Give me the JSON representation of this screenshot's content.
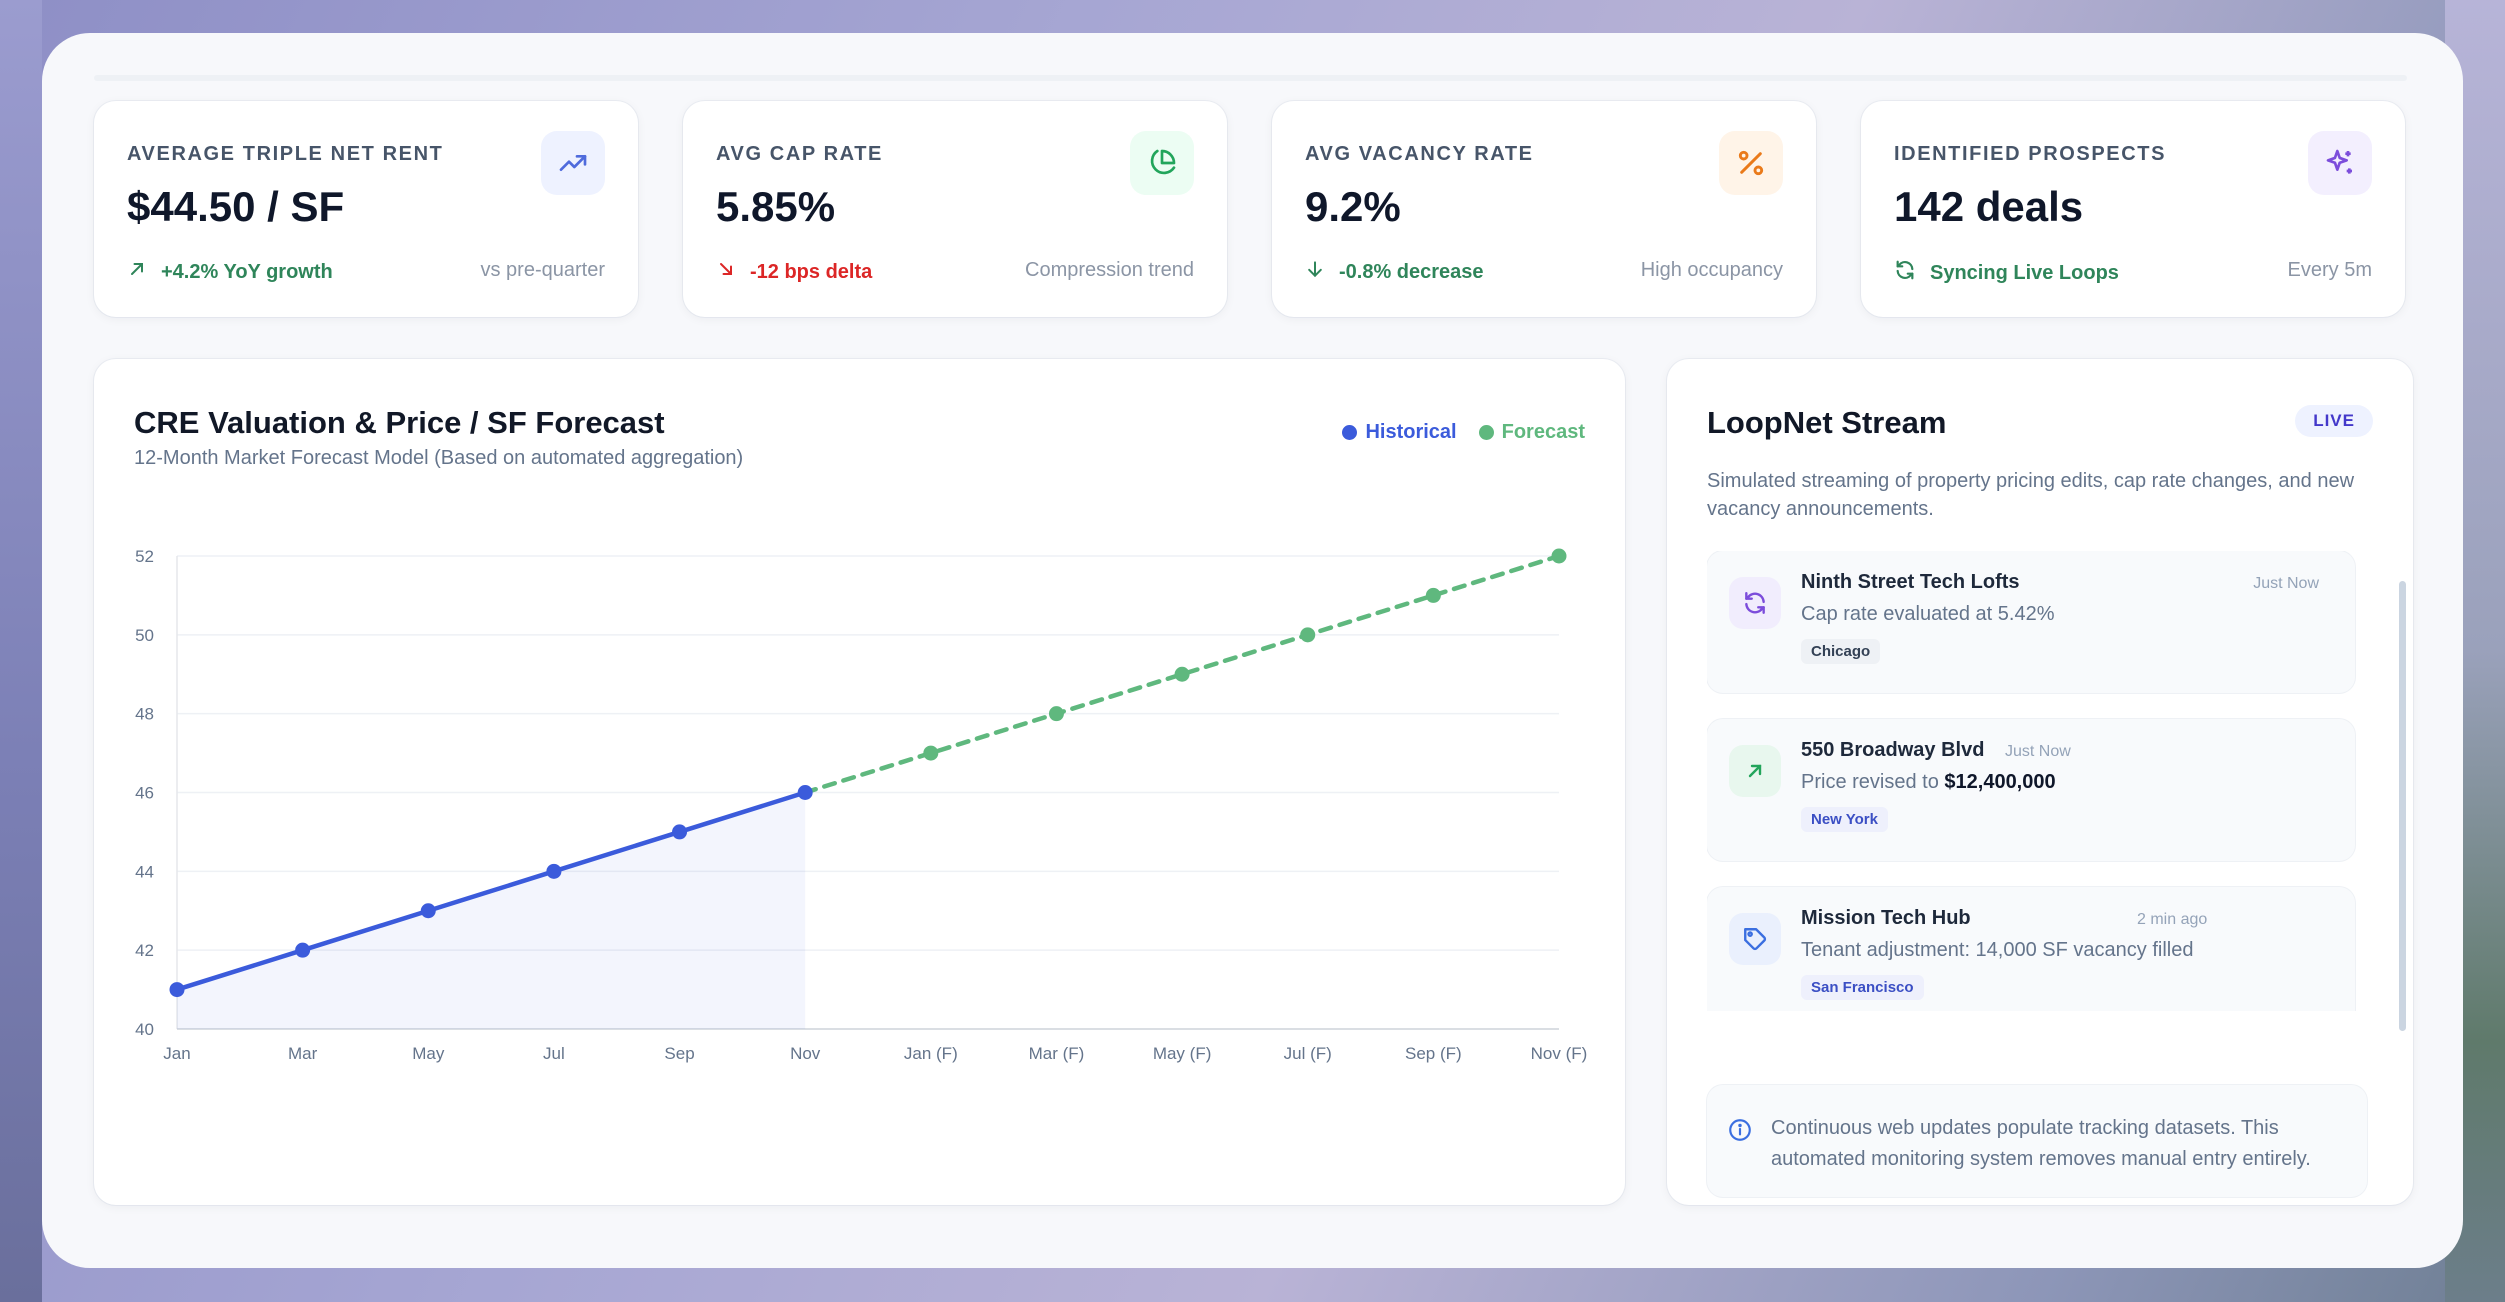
{
  "kpis": [
    {
      "label": "AVERAGE TRIPLE NET RENT",
      "value": "$44.50 / SF",
      "trend": "+4.2% YoY growth",
      "trend_icon": "arrow-up-right-icon",
      "note": "vs pre-quarter",
      "icon": "trending-up-icon",
      "trend_color": "#2f855a",
      "icon_bg": "#eef2ff",
      "icon_color": "#4f6bdc"
    },
    {
      "label": "AVG CAP RATE",
      "value": "5.85%",
      "trend": "-12 bps delta",
      "trend_icon": "arrow-down-right-icon",
      "note": "Compression trend",
      "icon": "pie-chart-icon",
      "trend_color": "#dc2626",
      "icon_bg": "#ecfdf3",
      "icon_color": "#22a55b"
    },
    {
      "label": "AVG VACANCY RATE",
      "value": "9.2%",
      "trend": "-0.8% decrease",
      "trend_icon": "arrow-down-icon",
      "note": "High occupancy",
      "icon": "percent-icon",
      "trend_color": "#2f855a",
      "icon_bg": "#fff4e8",
      "icon_color": "#ea7a1a"
    },
    {
      "label": "IDENTIFIED PROSPECTS",
      "value": "142 deals",
      "trend": "Syncing Live Loops",
      "trend_icon": "refresh-icon",
      "note": "Every 5m",
      "icon": "sparkles-icon",
      "trend_color": "#2f855a",
      "icon_bg": "#f3effe",
      "icon_color": "#7c4ddb"
    }
  ],
  "chart": {
    "title": "CRE Valuation & Price / SF Forecast",
    "subtitle": "12-Month Market Forecast Model (Based on automated aggregation)",
    "legend_historical": "Historical",
    "legend_forecast": "Forecast",
    "historical_color": "#3b5bdb",
    "forecast_color": "#5fb87e"
  },
  "chart_data": {
    "type": "line",
    "categories": [
      "Jan",
      "Mar",
      "May",
      "Jul",
      "Sep",
      "Nov",
      "Jan (F)",
      "Mar (F)",
      "May (F)",
      "Jul (F)",
      "Sep (F)",
      "Nov (F)"
    ],
    "series": [
      {
        "name": "Historical",
        "values": [
          41,
          42,
          43,
          44,
          45,
          46,
          null,
          null,
          null,
          null,
          null,
          null
        ]
      },
      {
        "name": "Forecast",
        "values": [
          null,
          null,
          null,
          null,
          null,
          46,
          47,
          48,
          49,
          50,
          51,
          52
        ]
      }
    ],
    "yticks": [
      40,
      42,
      44,
      46,
      48,
      50,
      52
    ],
    "ylim": [
      40,
      52
    ],
    "grid": true,
    "legend_position": "top-right"
  },
  "stream": {
    "title": "LoopNet Stream",
    "badge": "LIVE",
    "description": "Simulated streaming of property pricing edits, cap rate changes, and new vacancy announcements.",
    "items": [
      {
        "title": "Ninth Street Tech Lofts",
        "time": "Just Now",
        "text": "Cap rate evaluated at 5.42%",
        "text_bold": "",
        "tag": "Chicago",
        "icon": "refresh-icon"
      },
      {
        "title": "550 Broadway Blvd",
        "time": "Just Now",
        "text": "Price revised to ",
        "text_bold": "$12,400,000",
        "tag": "New York",
        "icon": "arrow-up-right-icon"
      },
      {
        "title": "Mission Tech Hub",
        "time": "2 min ago",
        "text": "Tenant adjustment: 14,000 SF vacancy filled",
        "text_bold": "",
        "tag": "San Francisco",
        "icon": "tag-icon"
      }
    ],
    "info": "Continuous web updates populate tracking datasets. This automated monitoring system removes manual entry entirely."
  }
}
